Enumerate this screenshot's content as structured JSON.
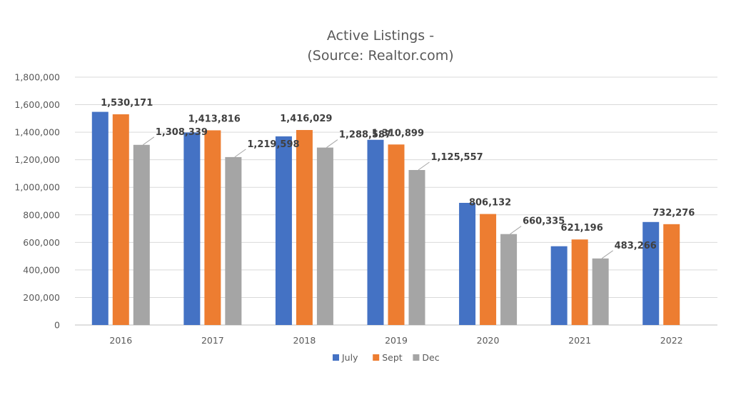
{
  "chart_data": {
    "type": "bar",
    "title": [
      "Active Listings -",
      "(Source: Realtor.com)"
    ],
    "xlabel": "",
    "ylabel": "",
    "categories": [
      "2016",
      "2017",
      "2018",
      "2019",
      "2020",
      "2021",
      "2022"
    ],
    "ylim": [
      0,
      1800000
    ],
    "yticks": [
      0,
      200000,
      400000,
      600000,
      800000,
      1000000,
      1200000,
      1400000,
      1600000,
      1800000
    ],
    "ytick_labels": [
      "0",
      "200,000",
      "400,000",
      "600,000",
      "800,000",
      "1,000,000",
      "1,200,000",
      "1,400,000",
      "1,600,000",
      "1,800,000"
    ],
    "grid": true,
    "legend_position": "bottom",
    "series": [
      {
        "name": "July",
        "color": "#4472C4",
        "values": [
          1548000,
          1398000,
          1370000,
          1345000,
          887000,
          572000,
          748000
        ]
      },
      {
        "name": "Sept",
        "color": "#ED7D31",
        "values": [
          1530171,
          1413816,
          1416029,
          1310899,
          806132,
          621196,
          732276
        ]
      },
      {
        "name": "Dec",
        "color": "#A5A5A5",
        "values": [
          1308339,
          1219598,
          1288587,
          1125557,
          660335,
          483266,
          null
        ]
      }
    ],
    "data_labels": [
      {
        "text": "1,530,171",
        "series": 1,
        "category": 0
      },
      {
        "text": "1,308,339",
        "series": 2,
        "category": 0
      },
      {
        "text": "1,413,816",
        "series": 1,
        "category": 1
      },
      {
        "text": "1,219,598",
        "series": 2,
        "category": 1
      },
      {
        "text": "1,416,029",
        "series": 1,
        "category": 2
      },
      {
        "text": "1,288,587",
        "series": 2,
        "category": 2
      },
      {
        "text": "1,310,899",
        "series": 1,
        "category": 3
      },
      {
        "text": "1,125,557",
        "series": 2,
        "category": 3
      },
      {
        "text": "806,132",
        "series": 1,
        "category": 4
      },
      {
        "text": "660,335",
        "series": 2,
        "category": 4
      },
      {
        "text": "621,196",
        "series": 1,
        "category": 5
      },
      {
        "text": "483,266",
        "series": 2,
        "category": 5
      },
      {
        "text": "732,276",
        "series": 1,
        "category": 6
      }
    ]
  }
}
